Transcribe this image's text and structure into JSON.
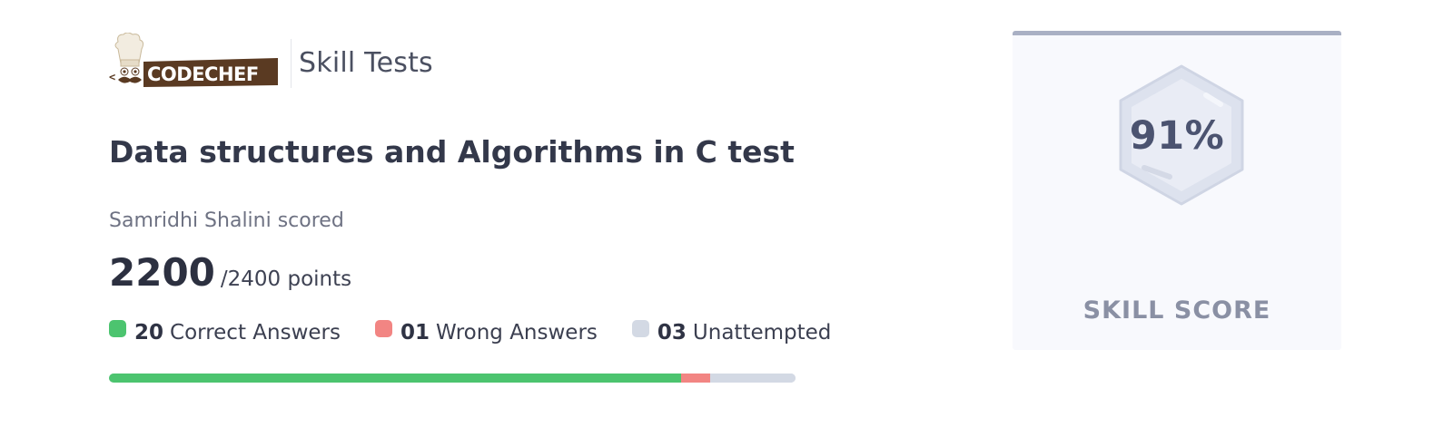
{
  "header": {
    "logo_text": "CODECHEF",
    "section_title": "Skill Tests"
  },
  "test": {
    "title": "Data structures and Algorithms in C test"
  },
  "result": {
    "scored_text": "Samridhi Shalini scored",
    "points": "2200",
    "total_text": "/2400 points"
  },
  "legend": [
    {
      "count": "20",
      "label": "Correct Answers",
      "color": "#4cc46f"
    },
    {
      "count": "01",
      "label": "Wrong Answers",
      "color": "#f28583"
    },
    {
      "count": "03",
      "label": "Unattempted",
      "color": "#d3d9e4"
    }
  ],
  "progress": {
    "correct": 20,
    "wrong": 1,
    "unattempted": 3
  },
  "skill_card": {
    "score": "91%",
    "label": "SKILL SCORE"
  }
}
